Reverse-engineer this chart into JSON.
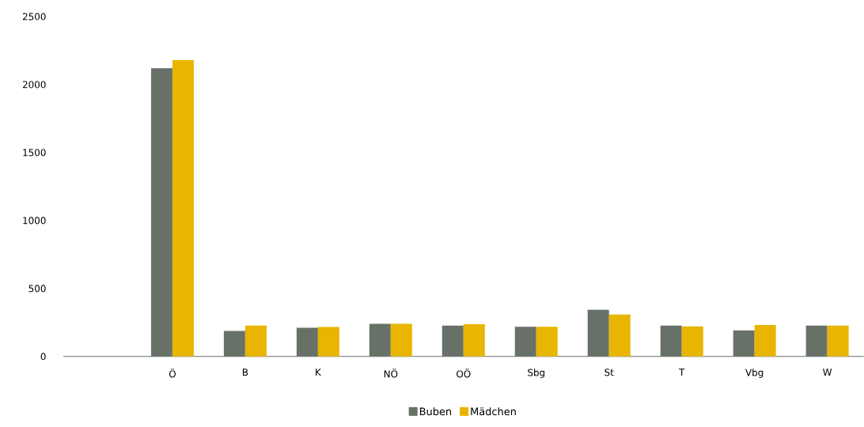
{
  "chart_data": {
    "type": "bar",
    "categories": [
      null,
      "Ö",
      "B",
      "K",
      "NÖ",
      "OÖ",
      "Sbg",
      "St",
      "T",
      "Vbg",
      "W"
    ],
    "series": [
      {
        "name": "Buben",
        "color": "#687168",
        "values": [
          null,
          2120,
          188,
          211,
          240,
          227,
          218,
          343,
          227,
          192,
          228
        ]
      },
      {
        "name": "Mädchen",
        "color": "#e8b500",
        "values": [
          null,
          2180,
          227,
          217,
          240,
          238,
          218,
          308,
          222,
          232,
          228
        ]
      }
    ],
    "ylim": [
      0,
      2500
    ],
    "yticks": [
      0,
      500,
      1000,
      1500,
      2000,
      2500
    ],
    "legend": "bottom"
  }
}
